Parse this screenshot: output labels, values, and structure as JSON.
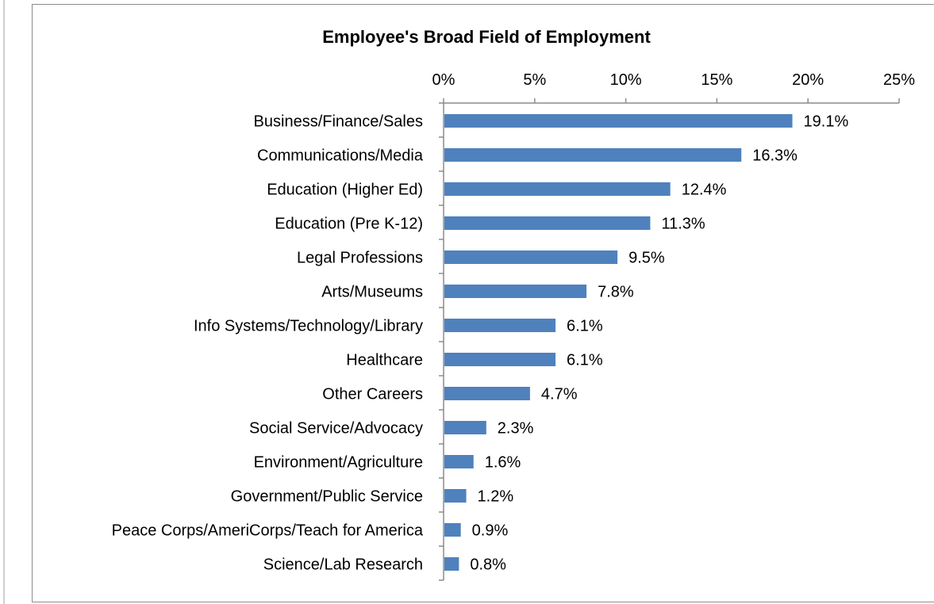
{
  "chart_data": {
    "type": "bar",
    "orientation": "horizontal",
    "title": "Employee's Broad Field of Employment",
    "xlabel": "",
    "ylabel": "",
    "xlim": [
      0,
      25
    ],
    "x_ticks": [
      "0%",
      "5%",
      "10%",
      "15%",
      "20%",
      "25%"
    ],
    "x_axis_position": "top",
    "grid": false,
    "bar_color": "#4F81BD",
    "categories": [
      "Business/Finance/Sales",
      "Communications/Media",
      "Education (Higher Ed)",
      "Education (Pre K-12)",
      "Legal Professions",
      "Arts/Museums",
      "Info Systems/Technology/Library",
      "Healthcare",
      "Other Careers",
      "Social Service/Advocacy",
      "Environment/Agriculture",
      "Government/Public Service",
      "Peace Corps/AmeriCorps/Teach for America",
      "Science/Lab Research"
    ],
    "values": [
      19.1,
      16.3,
      12.4,
      11.3,
      9.5,
      7.8,
      6.1,
      6.1,
      4.7,
      2.3,
      1.6,
      1.2,
      0.9,
      0.8
    ],
    "data_labels": [
      "19.1%",
      "16.3%",
      "12.4%",
      "11.3%",
      "9.5%",
      "7.8%",
      "6.1%",
      "6.1%",
      "4.7%",
      "2.3%",
      "1.6%",
      "1.2%",
      "0.9%",
      "0.8%"
    ]
  }
}
